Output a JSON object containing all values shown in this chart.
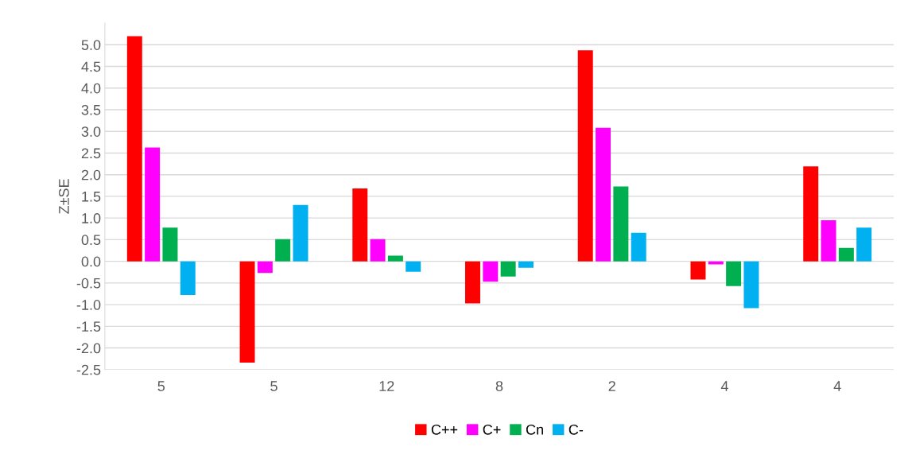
{
  "chart_data": {
    "type": "bar",
    "ylabel": "Z±SE",
    "categories": [
      "5",
      "5",
      "12",
      "8",
      "2",
      "4",
      "4"
    ],
    "series": [
      {
        "name": "C++",
        "color": "#ff0000",
        "values": [
          5.2,
          -2.34,
          1.68,
          -0.97,
          4.87,
          -0.42,
          2.19
        ]
      },
      {
        "name": "C+",
        "color": "#ff00ff",
        "values": [
          2.63,
          -0.27,
          0.51,
          -0.47,
          3.08,
          -0.07,
          0.95
        ]
      },
      {
        "name": "Cn",
        "color": "#00b050",
        "values": [
          0.78,
          0.51,
          0.13,
          -0.35,
          1.73,
          -0.57,
          0.31
        ]
      },
      {
        "name": "C-",
        "color": "#00b0f0",
        "values": [
          -0.78,
          1.3,
          -0.24,
          -0.15,
          0.66,
          -1.08,
          0.78
        ]
      }
    ],
    "ylim": [
      -2.5,
      5.5
    ],
    "yticks": [
      {
        "value": -2.5,
        "label": "-2.5"
      },
      {
        "value": -2.0,
        "label": "-2.0"
      },
      {
        "value": -1.5,
        "label": "-1.5"
      },
      {
        "value": -1.0,
        "label": "-1.0"
      },
      {
        "value": -0.5,
        "label": "-0.5"
      },
      {
        "value": 0,
        "label": "0.0"
      },
      {
        "value": 0.5,
        "label": "0.5"
      },
      {
        "value": 1.0,
        "label": "1.0"
      },
      {
        "value": 1.5,
        "label": "1.5"
      },
      {
        "value": 2.0,
        "label": "2.0"
      },
      {
        "value": 2.5,
        "label": "2.5"
      },
      {
        "value": 3.0,
        "label": "3.0"
      },
      {
        "value": 3.5,
        "label": "3.5"
      },
      {
        "value": 4.0,
        "label": "4.0"
      },
      {
        "value": 4.5,
        "label": "4.5"
      },
      {
        "value": 5.0,
        "label": "5.0"
      }
    ],
    "grid": "y",
    "legend": "bottom"
  }
}
